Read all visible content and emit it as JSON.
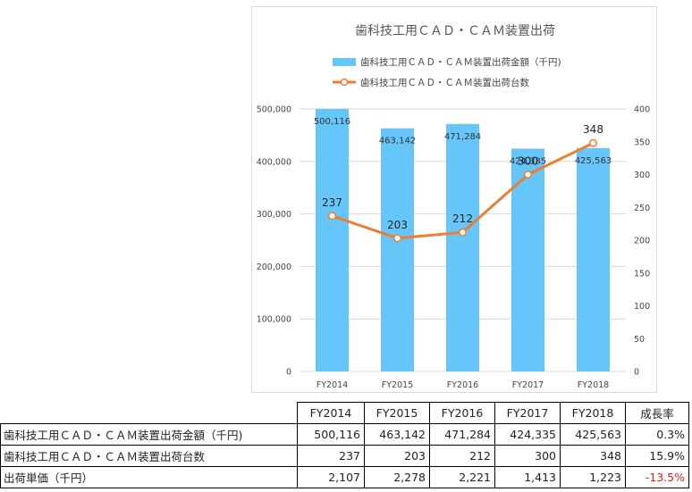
{
  "chart_data": {
    "type": "bar+line",
    "title": "歯科技工用ＣＡＤ・ＣＡＭ装置出荷",
    "categories": [
      "FY2014",
      "FY2015",
      "FY2016",
      "FY2017",
      "FY2018"
    ],
    "series": [
      {
        "name": "歯科技工用ＣＡＤ・ＣＡＭ装置出荷金額（千円)",
        "type": "bar",
        "axis": "left",
        "color": "#66c6f9",
        "values": [
          500116,
          463142,
          471284,
          424335,
          425563
        ],
        "labels": [
          "500,116",
          "463,142",
          "471,284",
          "424,335",
          "425,563"
        ]
      },
      {
        "name": "歯科技工用ＣＡＤ・ＣＡＭ装置出荷台数",
        "type": "line",
        "axis": "right",
        "color": "#ed7d31",
        "values": [
          237,
          203,
          212,
          300,
          348
        ],
        "labels": [
          "237",
          "203",
          "212",
          "300",
          "348"
        ]
      }
    ],
    "y_left": {
      "ylim": [
        0,
        500000
      ],
      "ticks": [
        0,
        100000,
        200000,
        300000,
        400000,
        500000
      ],
      "tick_labels": [
        "0",
        "100,000",
        "200,000",
        "300,000",
        "400,000",
        "500,000"
      ]
    },
    "y_right": {
      "ylim": [
        0,
        400
      ],
      "ticks": [
        0,
        50,
        100,
        150,
        200,
        250,
        300,
        350,
        400
      ],
      "tick_labels": [
        "0",
        "50",
        "100",
        "150",
        "200",
        "250",
        "300",
        "350",
        "400"
      ]
    },
    "grid": true,
    "legend_position": "top"
  },
  "table": {
    "header": [
      "FY2014",
      "FY2015",
      "FY2016",
      "FY2017",
      "FY2018",
      "成長率"
    ],
    "rows": [
      {
        "label": "歯科技工用ＣＡＤ・ＣＡＭ装置出荷金額（千円)",
        "values": [
          "500,116",
          "463,142",
          "471,284",
          "424,335",
          "425,563",
          "0.3%"
        ]
      },
      {
        "label": "歯科技工用ＣＡＤ・ＣＡＭ装置出荷台数",
        "values": [
          "237",
          "203",
          "212",
          "300",
          "348",
          "15.9%"
        ]
      },
      {
        "label": "出荷単価（千円）",
        "values": [
          "2,107",
          "2,278",
          "2,221",
          "1,413",
          "1,223",
          "-13.5%"
        ]
      }
    ],
    "negative_color": "#e0201b"
  }
}
